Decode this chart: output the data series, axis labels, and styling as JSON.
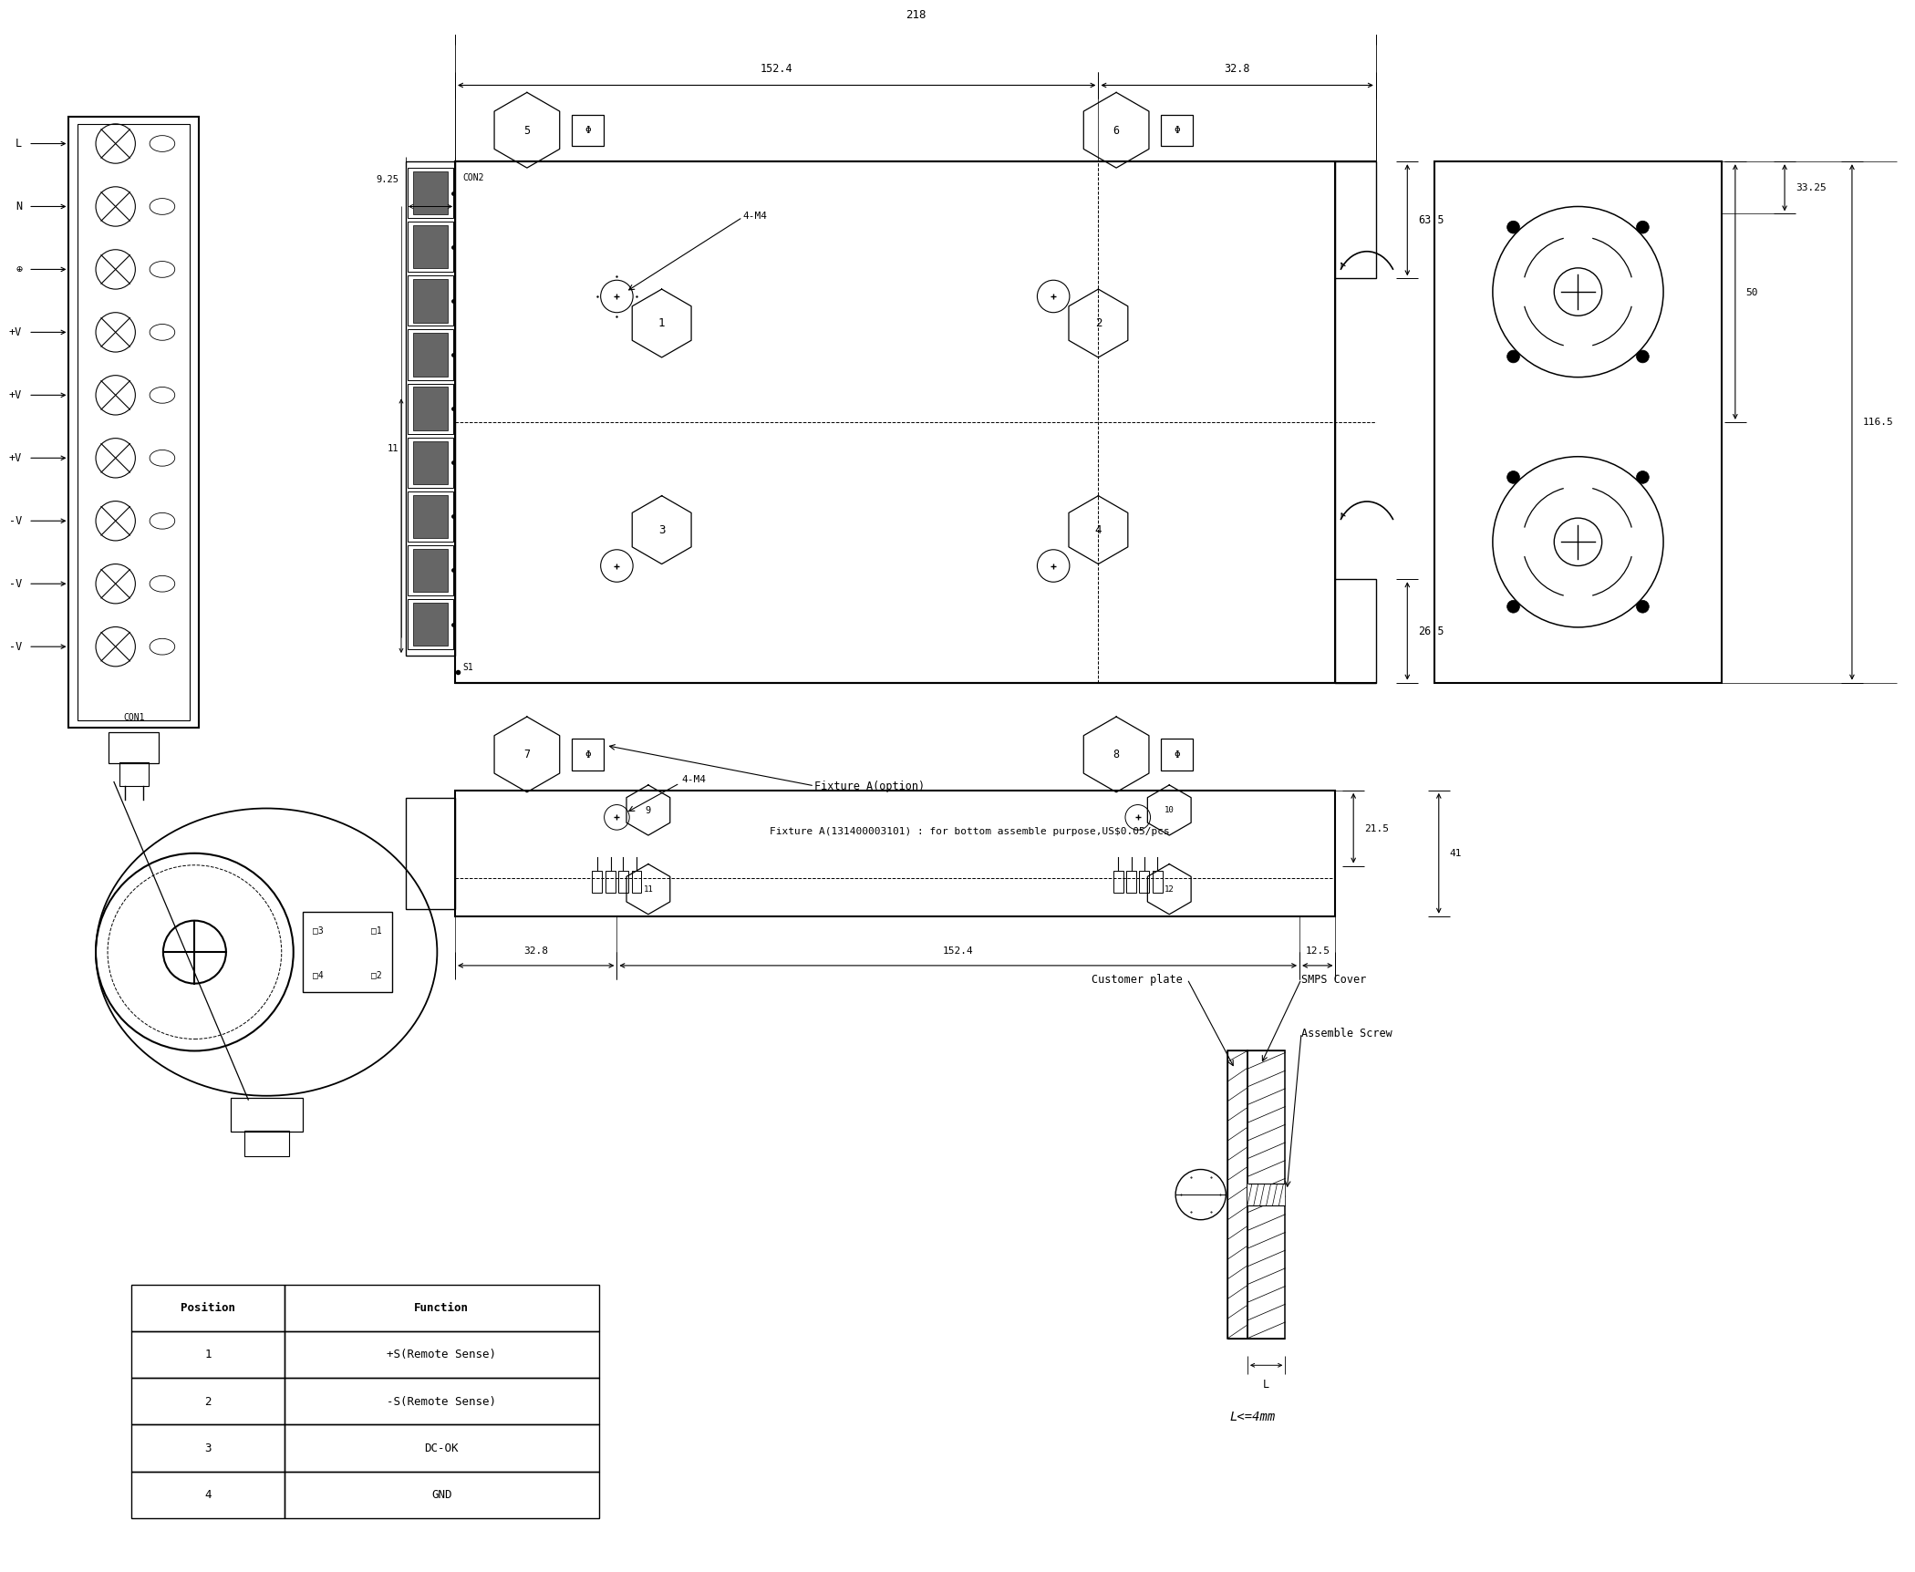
{
  "bg_color": "#ffffff",
  "line_color": "#000000",
  "table_data": [
    [
      "Position",
      "Function"
    ],
    [
      "1",
      "+S(Remote Sense)"
    ],
    [
      "2",
      "-S(Remote Sense)"
    ],
    [
      "3",
      "DC-OK"
    ],
    [
      "4",
      "GND"
    ]
  ],
  "fixture_text1": "Fixture A(option)",
  "fixture_text2": "Fixture A(131400003101) : for bottom assemble purpose,US$0.05/pcs",
  "smps_cover": "SMPS Cover",
  "assemble_screw": "Assemble Screw",
  "customer_plate": "Customer plate",
  "L_note": "L<=4mm",
  "con1": "CON1",
  "con2": "CON2",
  "s1": "S1",
  "labels_input": [
    "L",
    "N",
    "⊕",
    "+V",
    "+V",
    "+V",
    "-V",
    "-V",
    "-V"
  ],
  "dim_218": "218",
  "dim_152_4": "152.4",
  "dim_32_8": "32.8",
  "dim_63_5": "63.5",
  "dim_26_5": "26.5",
  "dim_9_25": "9.25",
  "dim_11": "11",
  "dim_33_25": "33.25",
  "dim_50": "50",
  "dim_116_5": "116.5",
  "dim_21_5": "21.5",
  "dim_41": "41",
  "dim_12_5": "12.5",
  "dim_32_8b": "32.8",
  "dim_152_4b": "152.4",
  "dim_L": "L",
  "dim_L_note": "L<=4mm"
}
